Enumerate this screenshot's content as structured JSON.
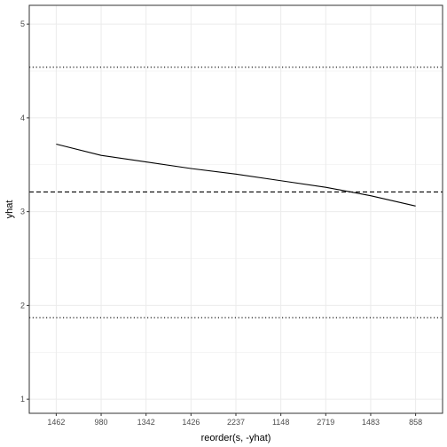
{
  "chart_data": {
    "type": "line",
    "xlabel": "reorder(s, -yhat)",
    "ylabel": "yhat",
    "categories": [
      "1462",
      "980",
      "1342",
      "1426",
      "2237",
      "1148",
      "2719",
      "1483",
      "858"
    ],
    "series": [
      {
        "values": [
          3.72,
          3.6,
          3.53,
          3.46,
          3.4,
          3.33,
          3.26,
          3.17,
          3.06
        ]
      }
    ],
    "ylim": [
      0.85,
      5.2
    ],
    "yticks": [
      1,
      2,
      3,
      4,
      5
    ],
    "reference_lines": [
      {
        "y": 4.54,
        "style": "dotted"
      },
      {
        "y": 3.21,
        "style": "dashed"
      },
      {
        "y": 1.87,
        "style": "dotted"
      }
    ],
    "grid": true,
    "theme": "bw",
    "colors": {
      "line": "#000000",
      "grid": "#ebebeb",
      "panel_border": "#333333"
    }
  }
}
